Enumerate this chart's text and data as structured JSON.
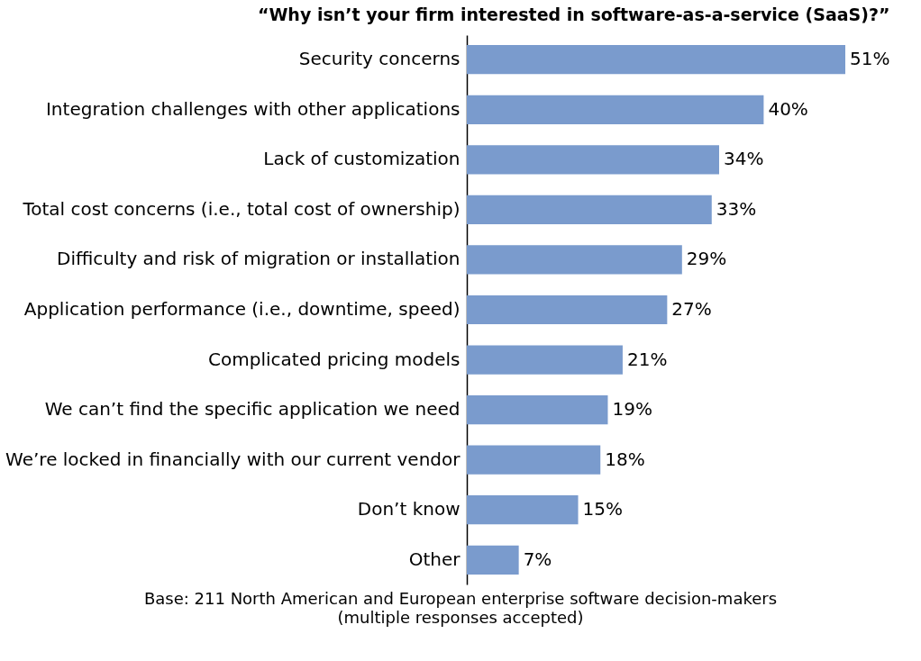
{
  "chart_data": {
    "type": "bar",
    "orientation": "horizontal",
    "title": "“Why isn’t your firm interested in software-as-a-service (SaaS)?”",
    "categories": [
      "Security concerns",
      "Integration challenges with other applications",
      "Lack of customization",
      "Total cost concerns (i.e., total cost of ownership)",
      "Difficulty and risk of migration or installation",
      "Application performance (i.e., downtime, speed)",
      "Complicated pricing models",
      "We can’t find the specific application we need",
      "We’re locked in financially with our current vendor",
      "Don’t know",
      "Other"
    ],
    "values": [
      51,
      40,
      34,
      33,
      29,
      27,
      21,
      19,
      18,
      15,
      7
    ],
    "value_labels": [
      "51%",
      "40%",
      "34%",
      "33%",
      "29%",
      "27%",
      "21%",
      "19%",
      "18%",
      "15%",
      "7%"
    ],
    "color": "#7a9bcd",
    "annotations": [
      "Base: 211 North American and European enterprise software decision-makers",
      "(multiple responses accepted)"
    ]
  }
}
